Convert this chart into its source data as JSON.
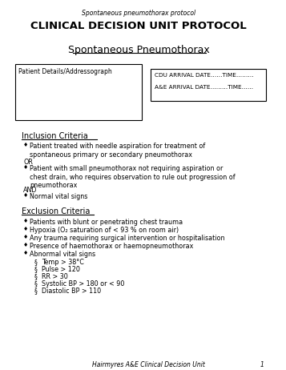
{
  "bg_color": "#ffffff",
  "header_small": "Spontaneous pneumothorax protocol",
  "title": "CLINICAL DECISION UNIT PROTOCOL",
  "subtitle": "Spontaneous Pneumothorax",
  "box1_label": "Patient Details/Addressograph",
  "box2_line1": "CDU ARRIVAL DATE……TIME………",
  "box2_line2": "A&E ARRIVAL DATE………TIME……",
  "inclusion_title": "Inclusion Criteria",
  "inclusion_bullets": [
    "Patient treated with needle aspiration for treatment of\nspontaneous primary or secondary pneumothorax",
    "Patient with small pneumothorax not requiring aspiration or\nchest drain, who requires observation to rule out progression of\npneumothorax",
    "Normal vital signs"
  ],
  "exclusion_title": "Exclusion Criteria",
  "exclusion_bullets": [
    "Patients with blunt or penetrating chest trauma",
    "Hypoxia (O₂ saturation of < 93 % on room air)",
    "Any trauma requiring surgical intervention or hospitalisation",
    "Presence of haemothorax or haemopneumothorax",
    "Abnormal vital signs"
  ],
  "sub_bullets": [
    "Temp > 38°C",
    "Pulse > 120",
    "RR > 30",
    "Systolic BP > 180 or < 90",
    "Diastolic BP > 110"
  ],
  "footer": "Hairmyres A&E Clinical Decision Unit",
  "footer_page": "1",
  "text_color": "#000000",
  "box_edge_color": "#000000"
}
